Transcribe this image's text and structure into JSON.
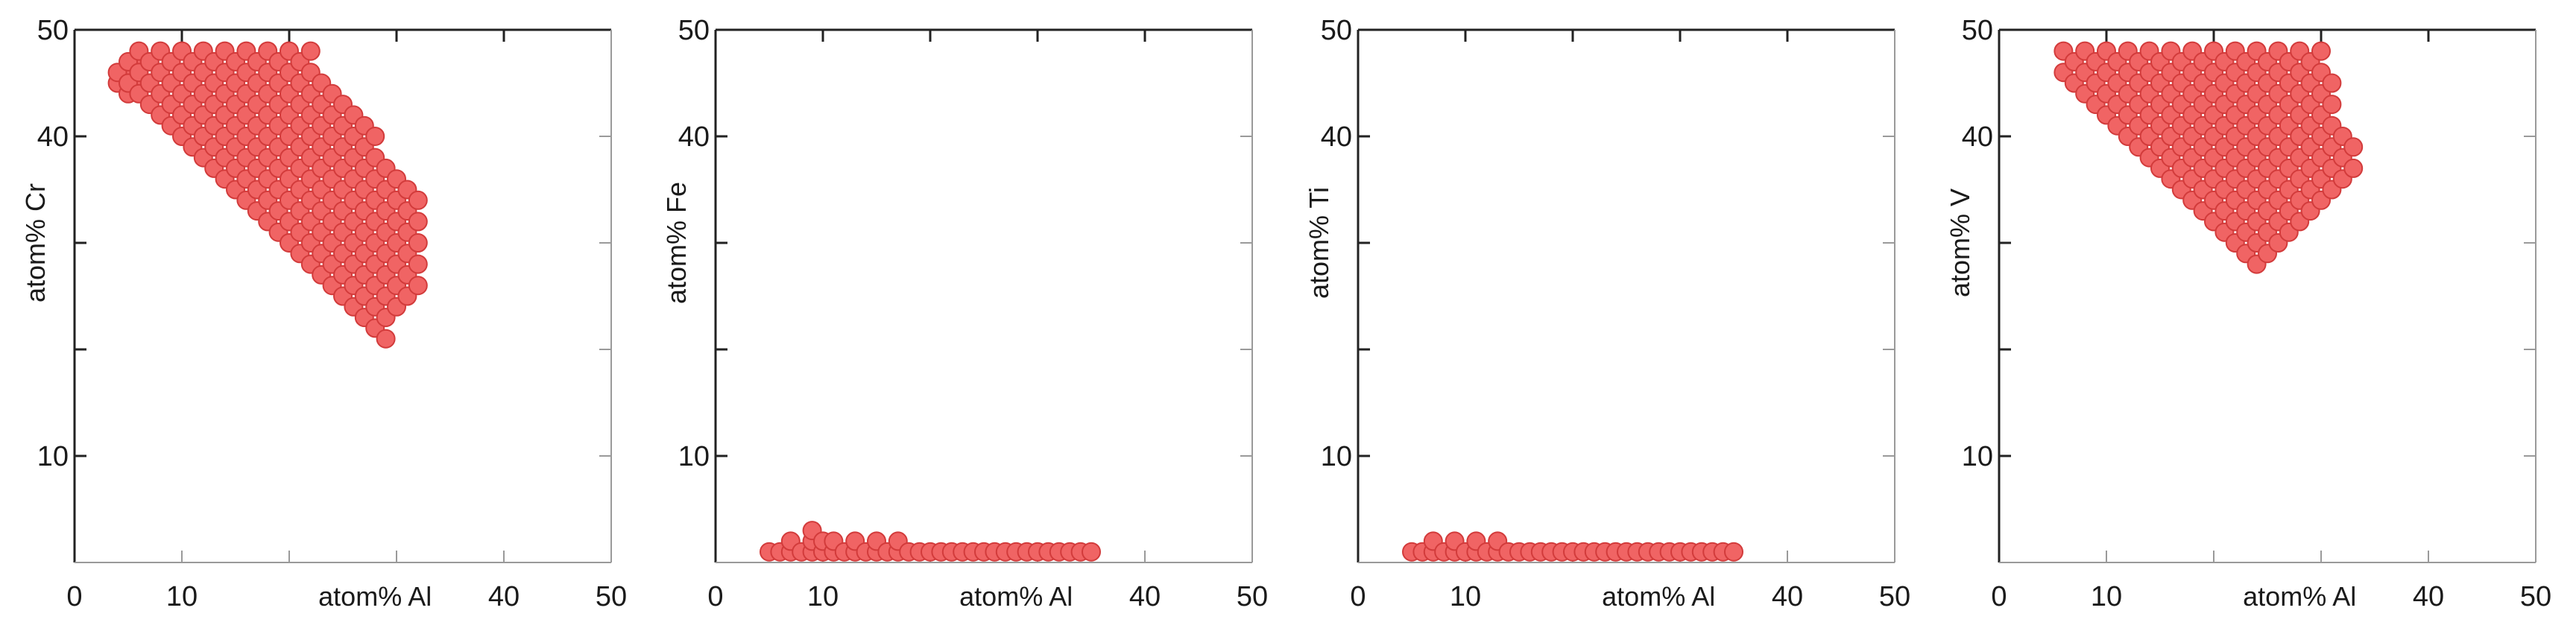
{
  "colors": {
    "point": "#f06464",
    "point_edge": "#d23b3b",
    "axis": "#222222"
  },
  "chart_data": [
    {
      "type": "scatter",
      "xlabel": "atom% Al",
      "ylabel": "atom% Cr",
      "xlim": [
        0,
        50
      ],
      "ylim": [
        0,
        50
      ],
      "x_ticks": [
        "0",
        "10",
        "40",
        "50"
      ],
      "y_ticks": [
        "10",
        "40",
        "50"
      ],
      "region": [
        [
          5,
          49
        ],
        [
          23,
          49
        ],
        [
          23,
          47
        ],
        [
          29,
          39
        ],
        [
          33,
          33
        ],
        [
          33,
          27
        ],
        [
          30,
          22
        ],
        [
          29,
          20
        ],
        [
          12,
          38
        ],
        [
          9,
          40
        ],
        [
          4,
          46
        ]
      ],
      "points": [
        [
          4,
          45
        ],
        [
          5,
          44
        ],
        [
          5,
          46
        ],
        [
          6,
          45
        ],
        [
          6,
          47
        ]
      ]
    },
    {
      "type": "scatter",
      "xlabel": "atom% Al",
      "ylabel": "atom% Fe",
      "xlim": [
        0,
        50
      ],
      "ylim": [
        0,
        50
      ],
      "x_ticks": [
        "0",
        "10",
        "40",
        "50"
      ],
      "y_ticks": [
        "10",
        "40",
        "50"
      ],
      "points": [
        [
          5,
          1
        ],
        [
          6,
          1
        ],
        [
          7,
          1
        ],
        [
          7,
          2
        ],
        [
          8,
          1
        ],
        [
          9,
          1
        ],
        [
          9,
          2
        ],
        [
          9,
          3
        ],
        [
          10,
          1
        ],
        [
          10,
          2
        ],
        [
          11,
          1
        ],
        [
          11,
          2
        ],
        [
          12,
          1
        ],
        [
          13,
          1
        ],
        [
          13,
          2
        ],
        [
          14,
          1
        ],
        [
          15,
          1
        ],
        [
          15,
          2
        ],
        [
          16,
          1
        ],
        [
          17,
          1
        ],
        [
          17,
          2
        ],
        [
          18,
          1
        ],
        [
          19,
          1
        ],
        [
          20,
          1
        ],
        [
          21,
          1
        ],
        [
          22,
          1
        ],
        [
          23,
          1
        ],
        [
          24,
          1
        ],
        [
          25,
          1
        ],
        [
          26,
          1
        ],
        [
          27,
          1
        ],
        [
          28,
          1
        ],
        [
          29,
          1
        ],
        [
          30,
          1
        ],
        [
          31,
          1
        ],
        [
          32,
          1
        ],
        [
          33,
          1
        ],
        [
          34,
          1
        ],
        [
          35,
          1
        ]
      ]
    },
    {
      "type": "scatter",
      "xlabel": "atom% Al",
      "ylabel": "atom% Ti",
      "xlim": [
        0,
        50
      ],
      "ylim": [
        0,
        50
      ],
      "x_ticks": [
        "0",
        "10",
        "40",
        "50"
      ],
      "y_ticks": [
        "10",
        "40",
        "50"
      ],
      "points": [
        [
          5,
          1
        ],
        [
          6,
          1
        ],
        [
          7,
          1
        ],
        [
          7,
          2
        ],
        [
          8,
          1
        ],
        [
          9,
          1
        ],
        [
          9,
          2
        ],
        [
          10,
          1
        ],
        [
          11,
          1
        ],
        [
          11,
          2
        ],
        [
          12,
          1
        ],
        [
          13,
          1
        ],
        [
          13,
          2
        ],
        [
          14,
          1
        ],
        [
          15,
          1
        ],
        [
          16,
          1
        ],
        [
          17,
          1
        ],
        [
          18,
          1
        ],
        [
          19,
          1
        ],
        [
          20,
          1
        ],
        [
          21,
          1
        ],
        [
          22,
          1
        ],
        [
          23,
          1
        ],
        [
          24,
          1
        ],
        [
          25,
          1
        ],
        [
          26,
          1
        ],
        [
          27,
          1
        ],
        [
          28,
          1
        ],
        [
          29,
          1
        ],
        [
          30,
          1
        ],
        [
          31,
          1
        ],
        [
          32,
          1
        ],
        [
          33,
          1
        ],
        [
          34,
          1
        ],
        [
          35,
          1
        ]
      ]
    },
    {
      "type": "scatter",
      "xlabel": "atom% Al",
      "ylabel": "atom% V",
      "xlim": [
        0,
        50
      ],
      "ylim": [
        0,
        50
      ],
      "x_ticks": [
        "0",
        "10",
        "40",
        "50"
      ],
      "y_ticks": [
        "10",
        "40",
        "50"
      ],
      "region": [
        [
          5,
          49
        ],
        [
          31,
          49
        ],
        [
          31,
          47
        ],
        [
          32,
          42
        ],
        [
          34,
          40
        ],
        [
          34,
          37
        ],
        [
          29,
          32
        ],
        [
          25,
          27
        ],
        [
          17,
          34
        ],
        [
          12,
          40
        ],
        [
          10,
          41
        ],
        [
          6,
          46
        ]
      ],
      "points": []
    }
  ]
}
